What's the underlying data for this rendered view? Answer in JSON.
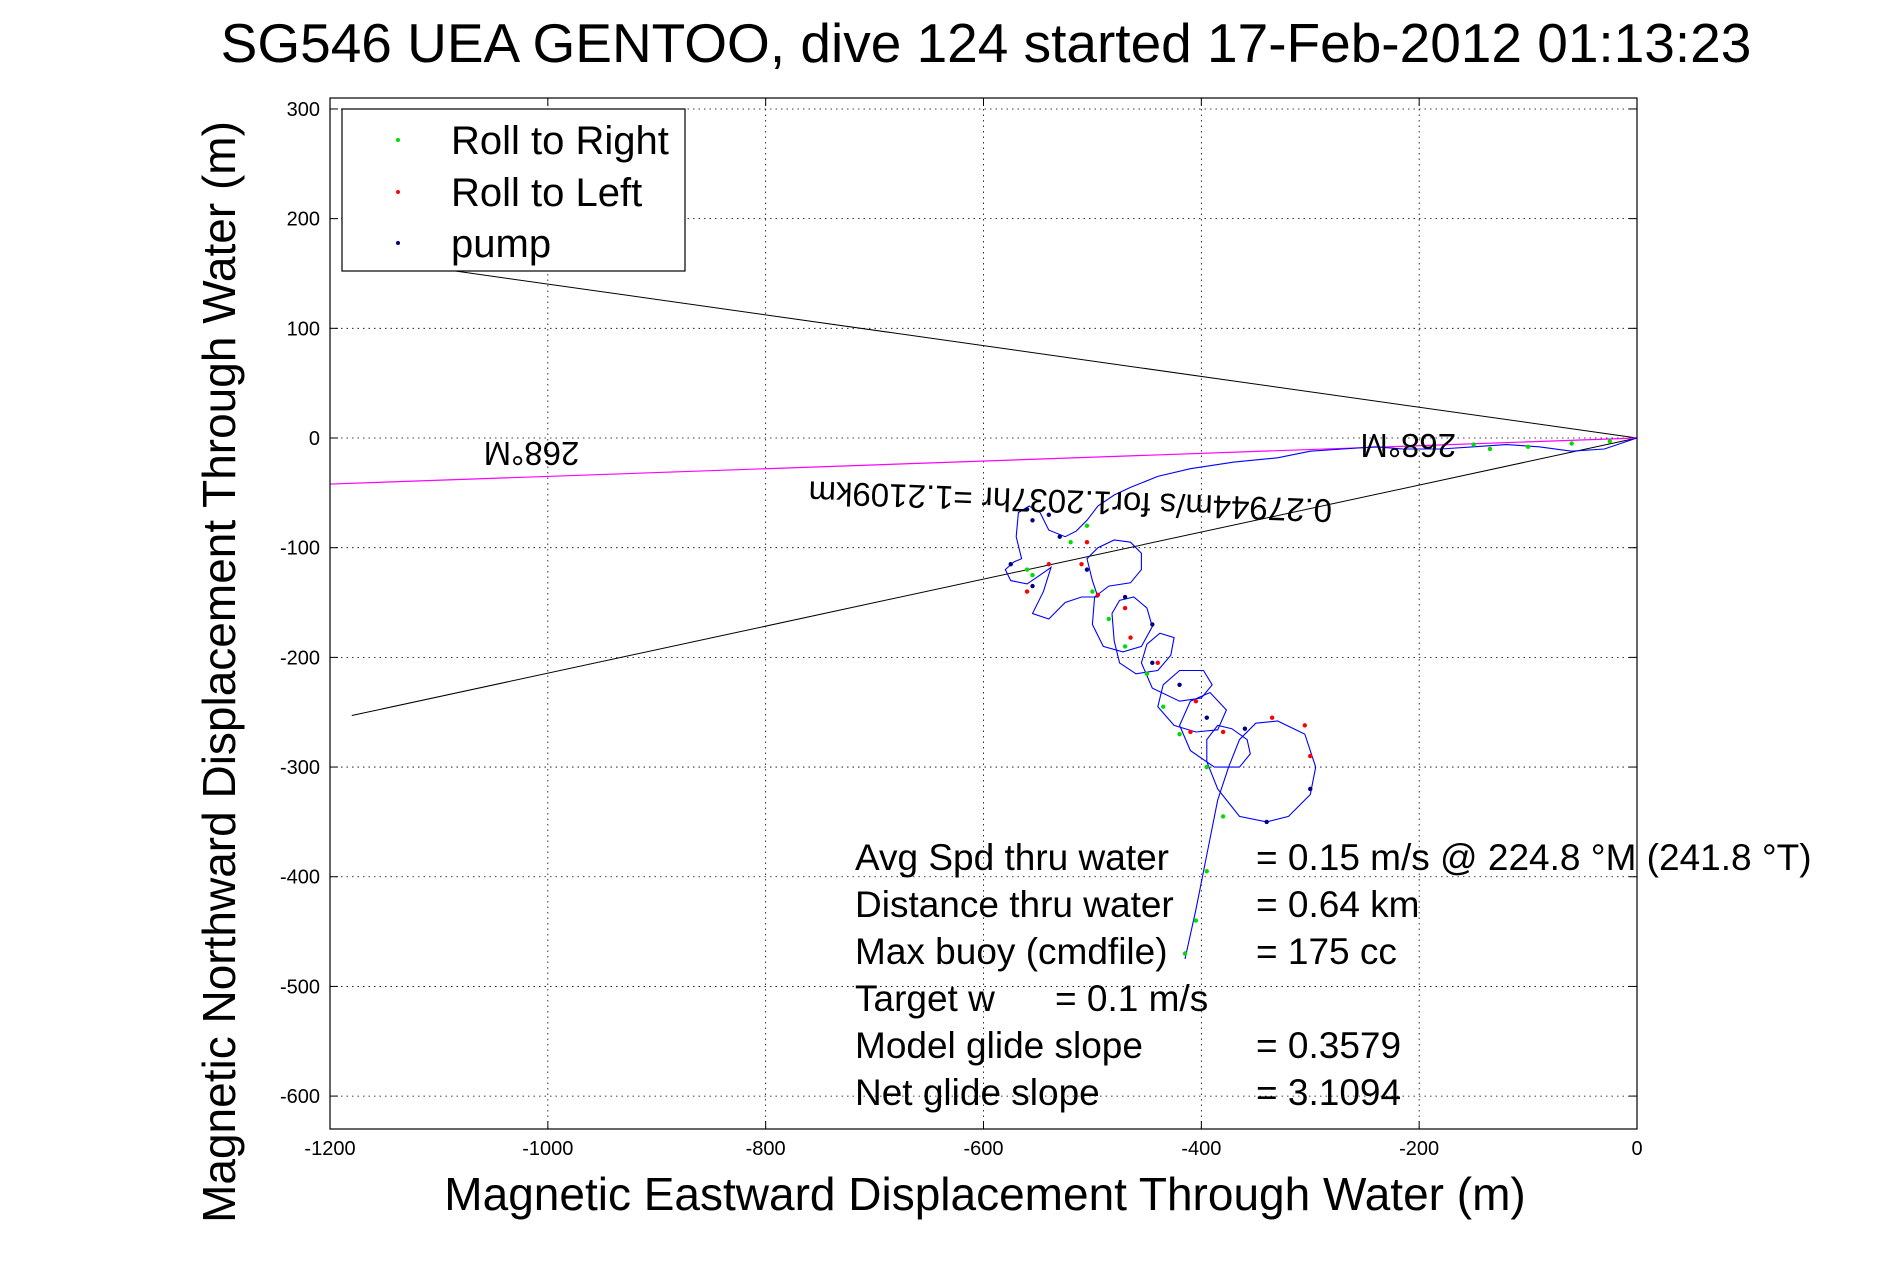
{
  "chart_data": {
    "type": "scatter",
    "title": "SG546 UEA GENTOO, dive 124 started 17-Feb-2012 01:13:23",
    "xlabel": "Magnetic Eastward Displacement Through Water (m)",
    "ylabel": "Magnetic Northward Displacement Through Water (m)",
    "xlim": [
      -1200,
      0
    ],
    "ylim": [
      -630,
      310
    ],
    "xticks": [
      -1200,
      -1000,
      -800,
      -600,
      -400,
      -200,
      0
    ],
    "yticks": [
      -600,
      -500,
      -400,
      -300,
      -200,
      -100,
      0,
      100,
      200,
      300
    ],
    "grid": true,
    "legend_position": "top-left",
    "colors": {
      "roll_right": "#00dd00",
      "roll_left": "#ff0000",
      "pump": "#000080",
      "track": "#0000ff",
      "heading": "#ff00ff",
      "cone": "#000000"
    },
    "legend": [
      {
        "label": "Roll to Right",
        "color": "#00dd00"
      },
      {
        "label": "Roll to Left",
        "color": "#ff0000"
      },
      {
        "label": "pump",
        "color": "#000080"
      }
    ],
    "series": [
      {
        "name": "Roll to Right",
        "points": [
          [
            -25,
            -3
          ],
          [
            -60,
            -5
          ],
          [
            -100,
            -8
          ],
          [
            -135,
            -10
          ],
          [
            -150,
            -6
          ],
          [
            -415,
            -470
          ],
          [
            -405,
            -440
          ],
          [
            -395,
            -395
          ],
          [
            -380,
            -345
          ],
          [
            -395,
            -300
          ],
          [
            -420,
            -270
          ],
          [
            -435,
            -245
          ],
          [
            -450,
            -215
          ],
          [
            -470,
            -190
          ],
          [
            -485,
            -165
          ],
          [
            -500,
            -140
          ],
          [
            -520,
            -95
          ],
          [
            -505,
            -80
          ],
          [
            -560,
            -120
          ],
          [
            -555,
            -125
          ]
        ]
      },
      {
        "name": "Roll to Left",
        "points": [
          [
            -300,
            -290
          ],
          [
            -305,
            -262
          ],
          [
            -335,
            -255
          ],
          [
            -380,
            -268
          ],
          [
            -410,
            -268
          ],
          [
            -405,
            -240
          ],
          [
            -440,
            -205
          ],
          [
            -465,
            -182
          ],
          [
            -470,
            -155
          ],
          [
            -495,
            -143
          ],
          [
            -510,
            -115
          ],
          [
            -505,
            -95
          ],
          [
            -540,
            -115
          ],
          [
            -560,
            -140
          ]
        ]
      },
      {
        "name": "pump",
        "points": [
          [
            -560,
            -65
          ],
          [
            -555,
            -75
          ],
          [
            -540,
            -70
          ],
          [
            -530,
            -90
          ],
          [
            -505,
            -120
          ],
          [
            -470,
            -145
          ],
          [
            -445,
            -170
          ],
          [
            -445,
            -205
          ],
          [
            -420,
            -225
          ],
          [
            -395,
            -255
          ],
          [
            -360,
            -265
          ],
          [
            -340,
            -350
          ],
          [
            -300,
            -320
          ],
          [
            -575,
            -115
          ],
          [
            -555,
            -135
          ]
        ]
      }
    ],
    "track": {
      "points": [
        [
          0,
          0
        ],
        [
          -30,
          -10
        ],
        [
          -60,
          -12
        ],
        [
          -90,
          -8
        ],
        [
          -120,
          -6
        ],
        [
          -150,
          -8
        ],
        [
          -180,
          -10
        ],
        [
          -215,
          -10
        ],
        [
          -240,
          -8
        ],
        [
          -270,
          -10
        ],
        [
          -300,
          -12
        ],
        [
          -330,
          -18
        ],
        [
          -370,
          -22
        ],
        [
          -410,
          -28
        ],
        [
          -440,
          -35
        ],
        [
          -465,
          -45
        ],
        [
          -480,
          -52
        ],
        [
          -495,
          -62
        ],
        [
          -505,
          -75
        ],
        [
          -515,
          -85
        ],
        [
          -525,
          -90
        ],
        [
          -540,
          -84
        ],
        [
          -548,
          -68
        ],
        [
          -558,
          -62
        ],
        [
          -568,
          -68
        ],
        [
          -570,
          -90
        ],
        [
          -565,
          -110
        ],
        [
          -572,
          -113
        ],
        [
          -580,
          -120
        ],
        [
          -575,
          -130
        ],
        [
          -560,
          -133
        ],
        [
          -548,
          -125
        ],
        [
          -538,
          -118
        ],
        [
          -545,
          -140
        ],
        [
          -555,
          -160
        ],
        [
          -540,
          -165
        ],
        [
          -525,
          -150
        ],
        [
          -510,
          -145
        ],
        [
          -495,
          -145
        ],
        [
          -500,
          -130
        ],
        [
          -505,
          -110
        ],
        [
          -495,
          -100
        ],
        [
          -480,
          -93
        ],
        [
          -465,
          -95
        ],
        [
          -455,
          -105
        ],
        [
          -455,
          -120
        ],
        [
          -465,
          -132
        ],
        [
          -485,
          -135
        ],
        [
          -498,
          -145
        ],
        [
          -500,
          -170
        ],
        [
          -490,
          -190
        ],
        [
          -472,
          -195
        ],
        [
          -455,
          -190
        ],
        [
          -445,
          -172
        ],
        [
          -450,
          -155
        ],
        [
          -462,
          -145
        ],
        [
          -475,
          -148
        ],
        [
          -482,
          -160
        ],
        [
          -480,
          -185
        ],
        [
          -475,
          -205
        ],
        [
          -460,
          -215
        ],
        [
          -440,
          -212
        ],
        [
          -428,
          -198
        ],
        [
          -425,
          -182
        ],
        [
          -438,
          -178
        ],
        [
          -450,
          -188
        ],
        [
          -455,
          -205
        ],
        [
          -445,
          -228
        ],
        [
          -420,
          -240
        ],
        [
          -400,
          -237
        ],
        [
          -390,
          -225
        ],
        [
          -398,
          -212
        ],
        [
          -420,
          -212
        ],
        [
          -435,
          -225
        ],
        [
          -440,
          -245
        ],
        [
          -425,
          -262
        ],
        [
          -405,
          -268
        ],
        [
          -385,
          -266
        ],
        [
          -377,
          -248
        ],
        [
          -392,
          -232
        ],
        [
          -410,
          -240
        ],
        [
          -420,
          -262
        ],
        [
          -410,
          -285
        ],
        [
          -388,
          -300
        ],
        [
          -365,
          -300
        ],
        [
          -355,
          -288
        ],
        [
          -358,
          -275
        ],
        [
          -372,
          -265
        ],
        [
          -385,
          -262
        ],
        [
          -395,
          -275
        ],
        [
          -395,
          -295
        ],
        [
          -385,
          -320
        ],
        [
          -365,
          -345
        ],
        [
          -340,
          -350
        ],
        [
          -320,
          -345
        ],
        [
          -300,
          -325
        ],
        [
          -295,
          -300
        ],
        [
          -305,
          -270
        ],
        [
          -330,
          -258
        ],
        [
          -350,
          -260
        ],
        [
          -365,
          -275
        ],
        [
          -375,
          -300
        ],
        [
          -385,
          -330
        ],
        [
          -395,
          -380
        ],
        [
          -405,
          -430
        ],
        [
          -415,
          -475
        ]
      ]
    },
    "heading_line": {
      "label": "268°M",
      "points": [
        [
          0,
          0
        ],
        [
          -1200,
          -42
        ]
      ]
    },
    "cone_lines": [
      {
        "points": [
          [
            0,
            0
          ],
          [
            -1180,
            -253
          ]
        ]
      },
      {
        "points": [
          [
            0,
            0
          ],
          [
            -1140,
            160
          ]
        ]
      }
    ],
    "annotations": {
      "heading_mark_left": "268°M",
      "heading_mark_right": "268°M",
      "speed_note": "0.27944m/s for1.2037hr =1.2109km"
    }
  },
  "stats": [
    {
      "label": "Avg Spd thru water",
      "value": "=  0.15 m/s @ 224.8 °M (241.8 °T)"
    },
    {
      "label": "Distance thru water",
      "value": "=  0.64 km"
    },
    {
      "label": "Max buoy (cmdfile)",
      "value": "= 175 cc"
    },
    {
      "label": "Target w",
      "value": "= 0.1 m/s"
    },
    {
      "label": "Model glide slope",
      "value": "= 0.3579"
    },
    {
      "label": "Net glide slope",
      "value": "= 3.1094"
    }
  ]
}
